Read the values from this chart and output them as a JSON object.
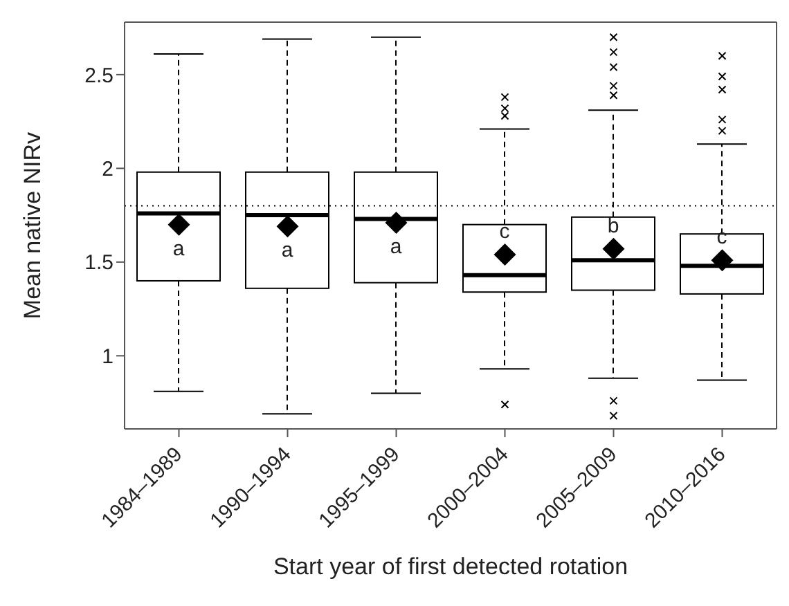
{
  "chart_data": {
    "type": "box",
    "xlabel": "Start year of first detected rotation",
    "ylabel": "Mean native NIRv",
    "categories": [
      "1984–1989",
      "1990–1994",
      "1995–1999",
      "2000–2004",
      "2005–2009",
      "2010–2016"
    ],
    "color": "#000000",
    "boxes": [
      {
        "low": 0.81,
        "q1": 1.4,
        "median": 1.76,
        "q3": 1.98,
        "high": 2.61,
        "mean": 1.7
      },
      {
        "low": 0.69,
        "q1": 1.36,
        "median": 1.75,
        "q3": 1.98,
        "high": 2.69,
        "mean": 1.69
      },
      {
        "low": 0.8,
        "q1": 1.39,
        "median": 1.73,
        "q3": 1.98,
        "high": 2.7,
        "mean": 1.71
      },
      {
        "low": 0.93,
        "q1": 1.34,
        "median": 1.43,
        "q3": 1.7,
        "high": 2.21,
        "mean": 1.54,
        "outliers": [
          2.38,
          2.32,
          2.28,
          0.74
        ]
      },
      {
        "low": 0.88,
        "q1": 1.35,
        "median": 1.51,
        "q3": 1.74,
        "high": 2.31,
        "mean": 1.57,
        "outliers": [
          2.7,
          2.62,
          2.54,
          2.44,
          2.39,
          0.76,
          0.68
        ]
      },
      {
        "low": 0.87,
        "q1": 1.33,
        "median": 1.48,
        "q3": 1.65,
        "high": 2.13,
        "mean": 1.51,
        "outliers": [
          2.6,
          2.49,
          2.42,
          2.26,
          2.2
        ]
      }
    ],
    "ylim": [
      0.61,
      2.78
    ],
    "yticks": [
      1,
      1.5,
      2,
      2.5
    ],
    "ref_lines": [
      {
        "axis": "y",
        "value": 1.8,
        "line_style": "dotted",
        "color": "#000000"
      }
    ],
    "annotations": [
      "a",
      "a",
      "a",
      "c",
      "b",
      "c"
    ]
  }
}
